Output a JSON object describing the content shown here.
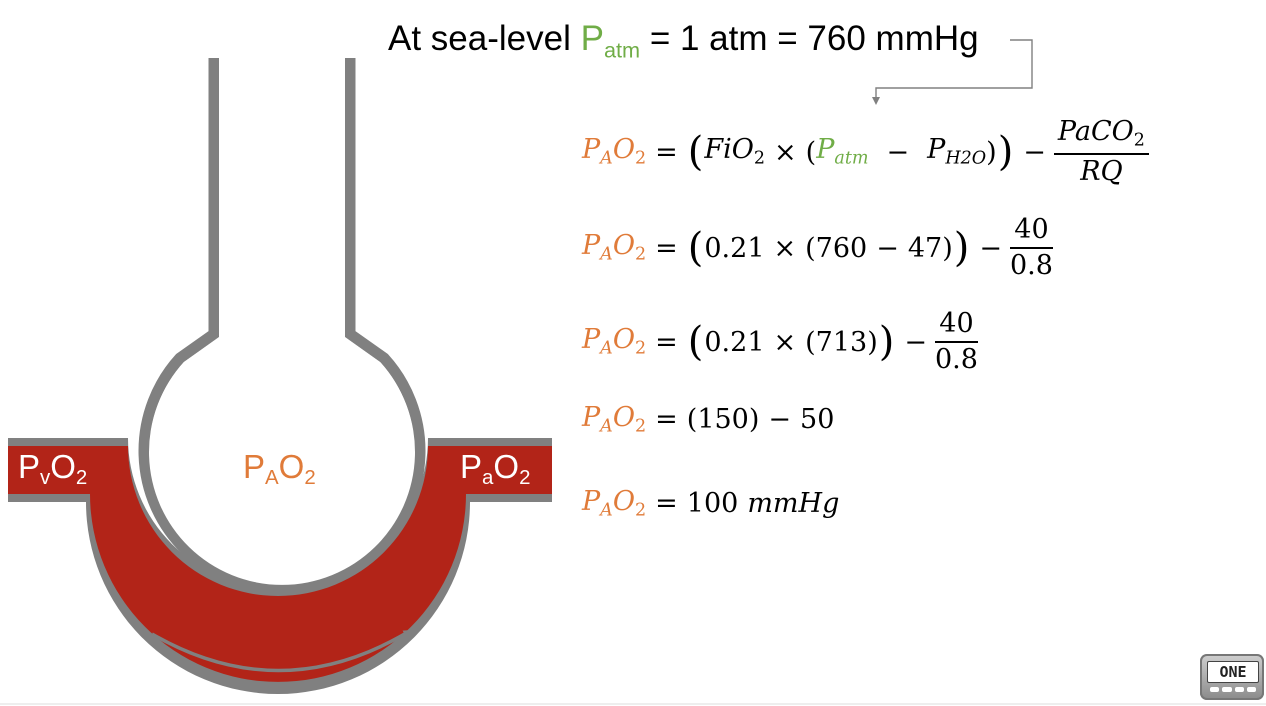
{
  "title": {
    "prefix": "At sea-level ",
    "p": "P",
    "p_sub": "atm",
    "suffix": " = 1 atm = 760 mmHg"
  },
  "labels": {
    "venous": {
      "p": "P",
      "sub": "v",
      "o": "O",
      "o_sub": "2"
    },
    "alveolar": {
      "p": "P",
      "sub": "A",
      "o": "O",
      "o_sub": "2"
    },
    "arterial": {
      "p": "P",
      "sub": "a",
      "o": "O",
      "o_sub": "2"
    }
  },
  "equations": {
    "lhs": {
      "p": "P",
      "sub": "A",
      "o": "O",
      "o_sub": "2"
    },
    "eq1": {
      "fio2": "FiO",
      "fio2_sub": "2",
      "times": "×",
      "patm": "P",
      "patm_sub": "atm",
      "minus": "−",
      "ph2o": "P",
      "ph2o_sub": "H2O",
      "num": "PaCO",
      "num_sub": "2",
      "den": "RQ"
    },
    "eq2": {
      "a": "0.21",
      "b": "760",
      "c": "47",
      "num": "40",
      "den": "0.8"
    },
    "eq3": {
      "a": "0.21",
      "b": "713",
      "num": "40",
      "den": "0.8"
    },
    "eq4": {
      "a": "150",
      "b": "50"
    },
    "eq5": {
      "value": "100",
      "unit": "mmHg"
    }
  },
  "colors": {
    "orange": "#e07b39",
    "green": "#70ad47",
    "venous_blue": "#4472c4",
    "arterial_red": "#b22418",
    "wall_gray": "#808080"
  },
  "logo": {
    "text": "ONE"
  }
}
